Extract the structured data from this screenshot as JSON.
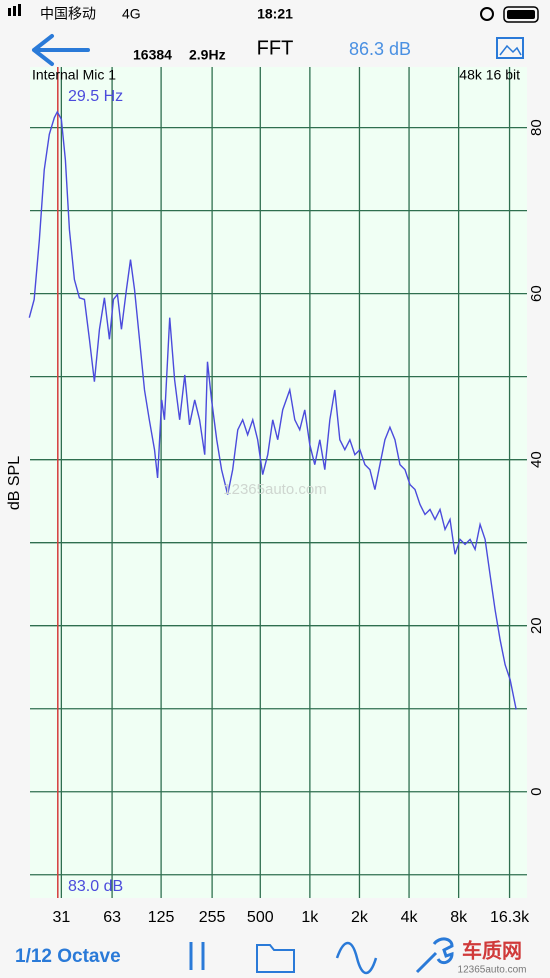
{
  "status_bar": {
    "carrier": "中国移动",
    "network": "4G",
    "time": "18:21"
  },
  "toolbar": {
    "fft_size": "16384",
    "resolution": "2.9Hz",
    "title": "FFT",
    "level": "86.3 dB"
  },
  "chart_data": {
    "type": "line",
    "input": "Internal Mic 1",
    "format": "48k 16 bit",
    "y_label": "dB SPL",
    "x_scale": "log",
    "grid": true,
    "readout": "83.0 dB",
    "marker": {
      "value": 29.5,
      "label": "29.5 Hz",
      "color": "#d43c3c"
    },
    "xlim": [
      20,
      20800
    ],
    "ylim": [
      -12.8,
      87.3
    ],
    "xticks": [
      31,
      63,
      125,
      255,
      500,
      {
        "value": 1000,
        "label": "1k"
      },
      {
        "value": 2000,
        "label": "2k"
      },
      {
        "value": 4000,
        "label": "4k"
      },
      {
        "value": 8000,
        "label": "8k"
      },
      {
        "value": 16300,
        "label": "16.3k"
      }
    ],
    "yticks": [
      0,
      20,
      40,
      60,
      80
    ],
    "y_minor_ticks": [
      -10,
      10,
      30,
      50,
      70
    ],
    "x": [
      19.8,
      21.2,
      22.8,
      24.4,
      26.2,
      28.1,
      29.3,
      31,
      32.8,
      34.7,
      37.2,
      39.9,
      42.8,
      45.9,
      49.2,
      52.8,
      56.6,
      60.7,
      64.2,
      67.9,
      71.8,
      77,
      81.5,
      86.2,
      92.4,
      99.1,
      106,
      114,
      119,
      126,
      131,
      141,
      151,
      162,
      174,
      186,
      200,
      214,
      230,
      239,
      253,
      272,
      291,
      317,
      340,
      365,
      391,
      419,
      450,
      482,
      517,
      555,
      595,
      638,
      684,
      755,
      810,
      868,
      931,
      999,
      1071,
      1149,
      1232,
      1322,
      1417,
      1520,
      1630,
      1749,
      1876,
      2012,
      2158,
      2314,
      2482,
      2662,
      2855,
      3062,
      3284,
      3522,
      3778,
      4052,
      4346,
      4661,
      4999,
      5361,
      5750,
      6167,
      6614,
      7093,
      7608,
      8160,
      8751,
      9386,
      10067,
      10797,
      11580,
      12420,
      13320,
      14286,
      15322,
      16433,
      17880
    ],
    "series": [
      {
        "color": "#4b4bdc",
        "values": [
          57.1,
          59.3,
          66.5,
          74.9,
          79.2,
          81.2,
          81.9,
          81.0,
          76.1,
          67.7,
          61.7,
          59.5,
          59.3,
          54.5,
          49.4,
          55.7,
          59.5,
          54.5,
          59.3,
          59.9,
          55.7,
          60.5,
          64.1,
          60.5,
          54.5,
          48.4,
          44.8,
          41.2,
          37.8,
          47.2,
          44.8,
          57.1,
          49.6,
          44.8,
          50.2,
          44.2,
          47.2,
          44.8,
          40.6,
          51.8,
          47.2,
          42.4,
          38.8,
          35.8,
          38.8,
          43.6,
          44.8,
          43.0,
          44.8,
          42.4,
          38.2,
          40.6,
          44.8,
          42.4,
          46.0,
          48.4,
          44.8,
          43.6,
          46.0,
          41.8,
          39.4,
          42.4,
          38.8,
          44.8,
          48.4,
          42.4,
          41.2,
          42.4,
          40.6,
          41.2,
          39.4,
          38.8,
          36.4,
          39.4,
          42.4,
          43.9,
          42.4,
          39.4,
          38.8,
          37.0,
          36.4,
          34.6,
          33.4,
          34.0,
          32.8,
          34.0,
          31.6,
          32.8,
          28.6,
          30.4,
          29.8,
          30.4,
          29.2,
          32.2,
          30.4,
          26.1,
          21.9,
          18.3,
          15.3,
          13.5,
          9.9
        ]
      }
    ]
  },
  "bottom_bar": {
    "mode": "1/12 Octave"
  },
  "watermark": {
    "brand": "车质网",
    "site": "12365auto.com"
  }
}
